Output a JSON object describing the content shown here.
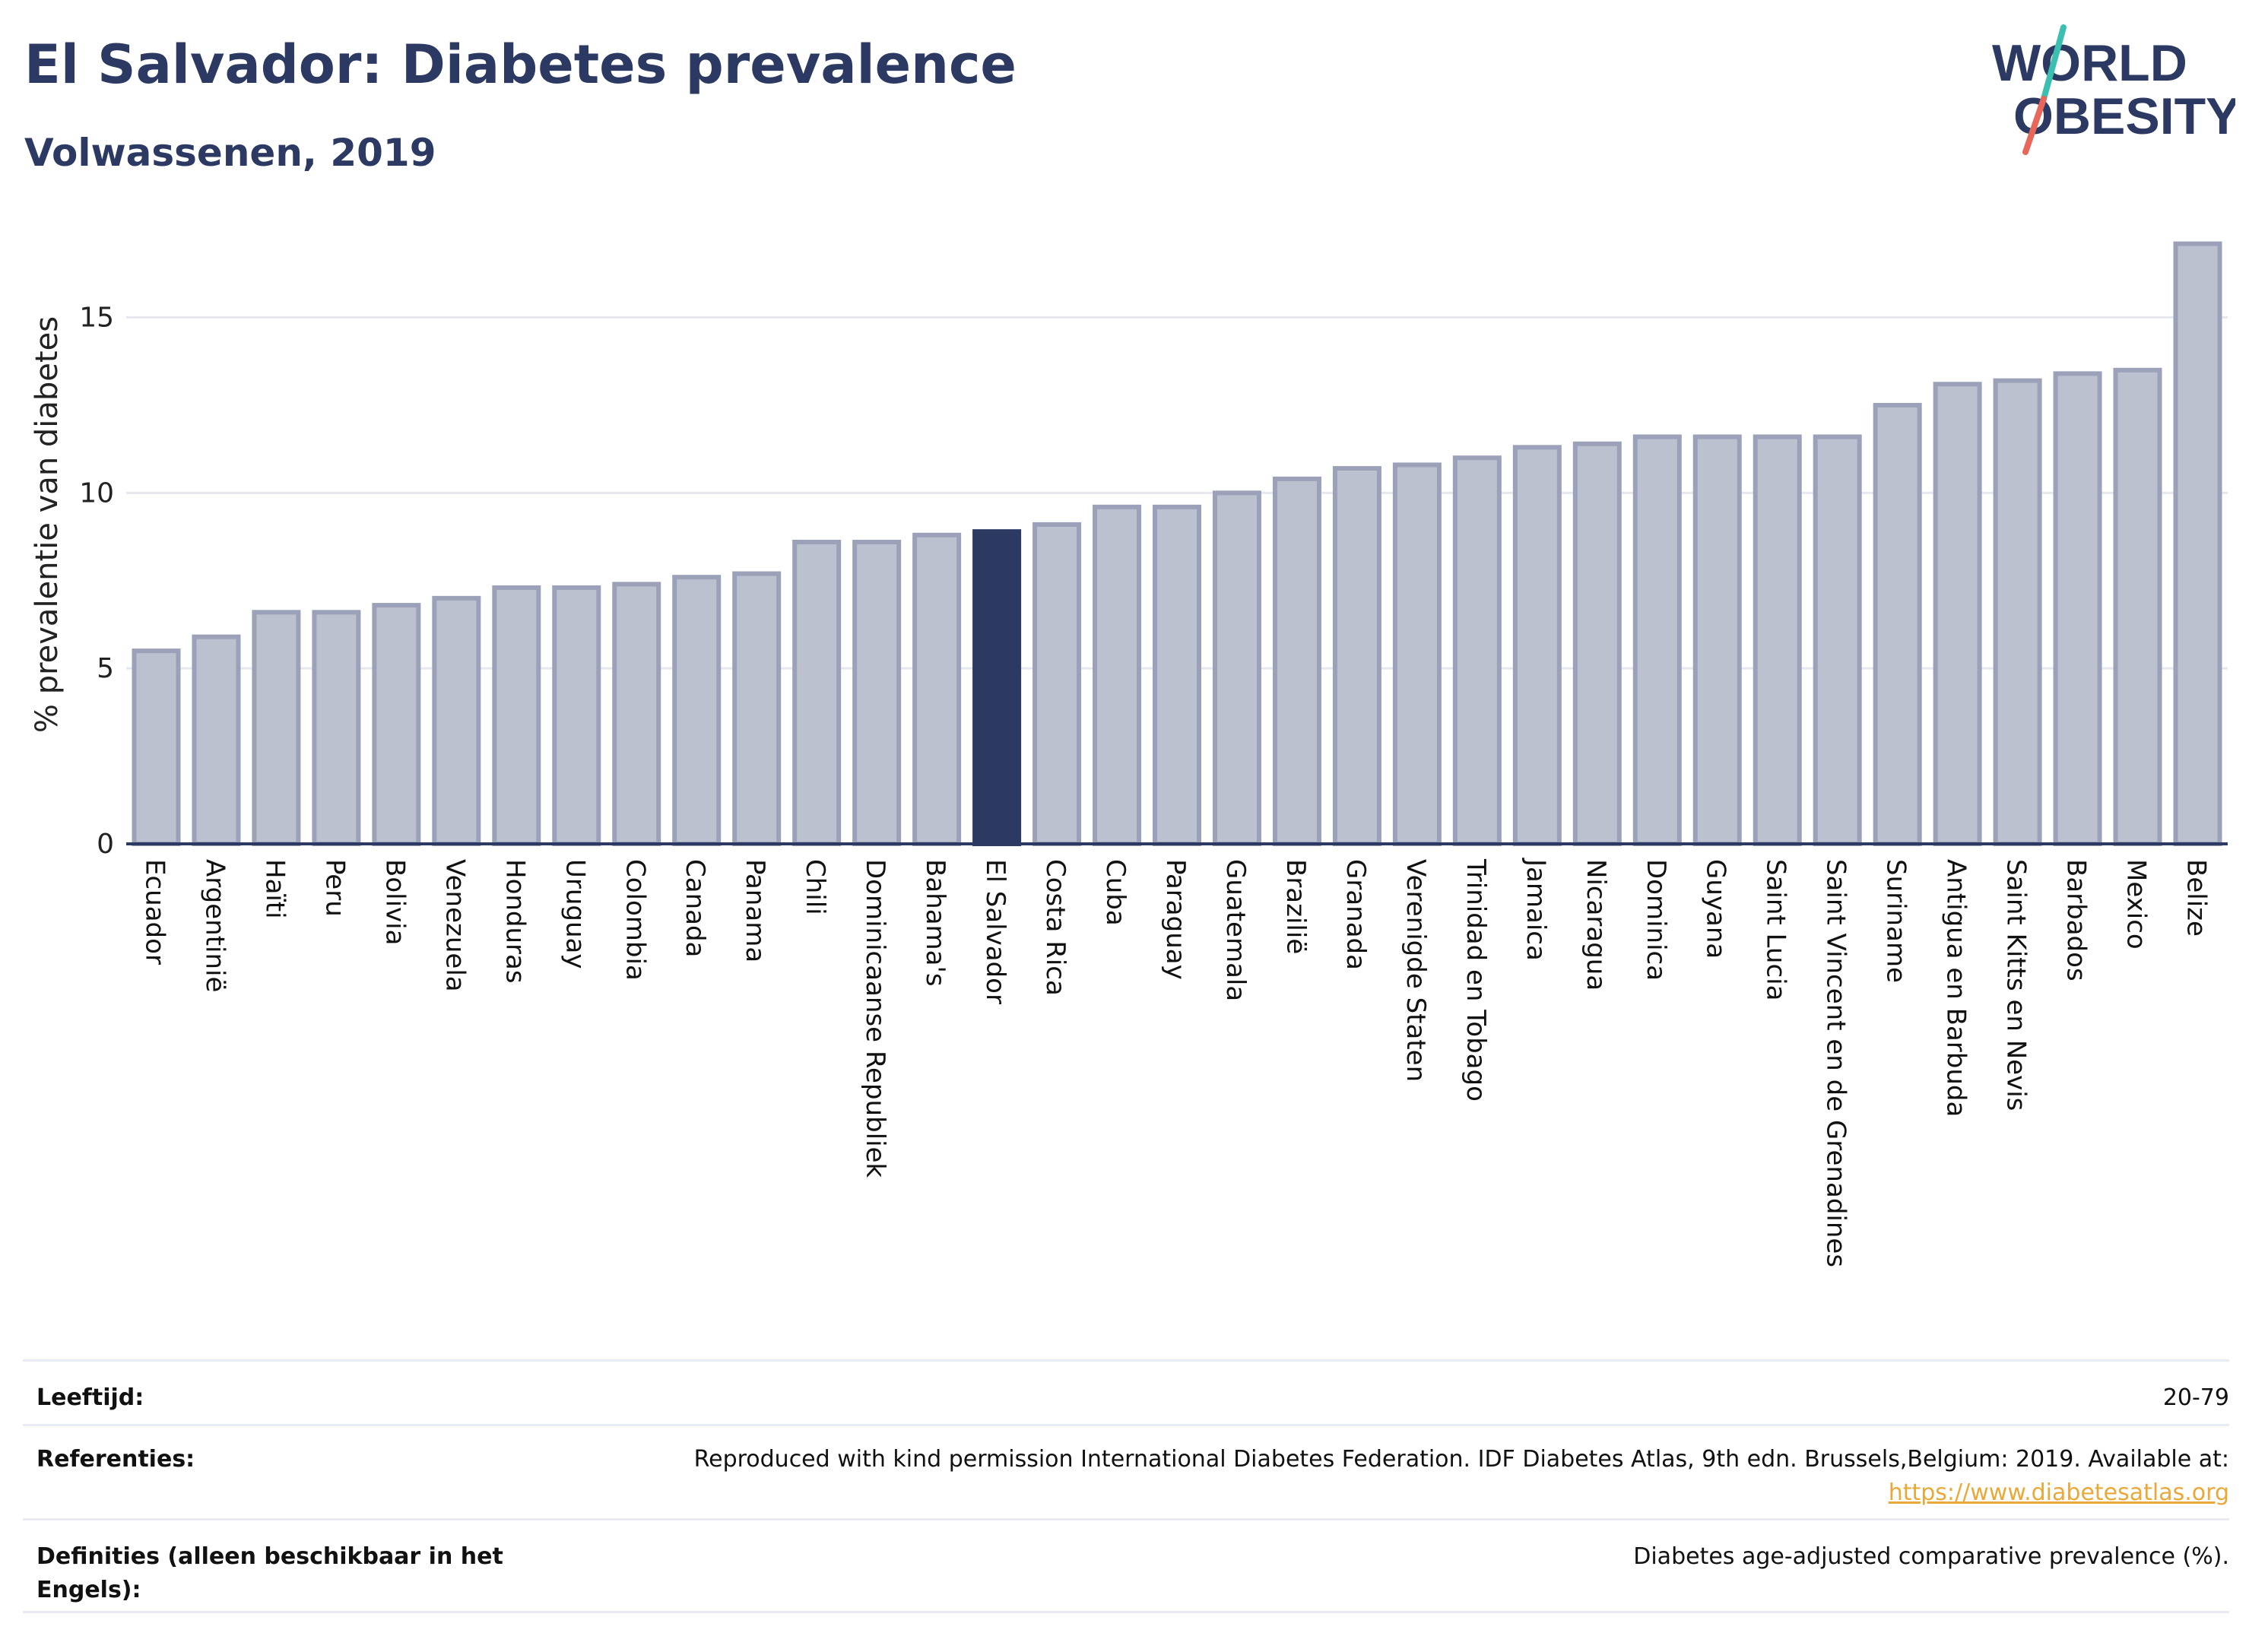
{
  "header": {
    "title": "El Salvador: Diabetes prevalence",
    "subtitle": "Volwassenen, 2019"
  },
  "logo": {
    "line1": "WORLD",
    "line2": "OBESITY",
    "accent_teal": "#3bbfb0",
    "accent_red": "#e8665a",
    "text_color": "#2c3a63"
  },
  "colors": {
    "bar_fill": "#bcc1d0",
    "bar_stroke": "#9aa1b9",
    "highlight_fill": "#2c3a63",
    "axis": "#2c3a63",
    "grid": "#e6e8ef"
  },
  "chart_data": {
    "type": "bar",
    "title": "El Salvador: Diabetes prevalence",
    "subtitle": "Volwassenen, 2019",
    "ylabel": "% prevalentie van diabetes",
    "xlabel": "",
    "ylim": [
      0,
      17.2
    ],
    "yticks": [
      0,
      5,
      10,
      15
    ],
    "grid": true,
    "highlight": "El Salvador",
    "categories": [
      "Ecuador",
      "Argentinië",
      "Haïti",
      "Peru",
      "Bolivia",
      "Venezuela",
      "Honduras",
      "Uruguay",
      "Colombia",
      "Canada",
      "Panama",
      "Chili",
      "Dominicaanse Republiek",
      "Bahama's",
      "El Salvador",
      "Costa Rica",
      "Cuba",
      "Paraguay",
      "Guatemala",
      "Brazilië",
      "Granada",
      "Verenigde Staten",
      "Trinidad en Tobago",
      "Jamaica",
      "Nicaragua",
      "Dominica",
      "Guyana",
      "Saint Lucia",
      "Saint Vincent en de Grenadines",
      "Suriname",
      "Antigua en Barbuda",
      "Saint Kitts en Nevis",
      "Barbados",
      "Mexico",
      "Belize"
    ],
    "values": [
      5.5,
      5.9,
      6.6,
      6.6,
      6.8,
      7.0,
      7.3,
      7.3,
      7.4,
      7.6,
      7.7,
      8.6,
      8.6,
      8.8,
      8.9,
      9.1,
      9.6,
      9.6,
      10.0,
      10.4,
      10.7,
      10.8,
      11.0,
      11.3,
      11.4,
      11.6,
      11.6,
      11.6,
      11.6,
      12.5,
      13.1,
      13.2,
      13.4,
      13.5,
      17.1
    ]
  },
  "footer": {
    "rows": [
      {
        "label": "Leeftijd:",
        "value": "20-79",
        "link": ""
      },
      {
        "label": "Referenties:",
        "value": "Reproduced with kind permission International Diabetes Federation. IDF Diabetes Atlas, 9th edn. Brussels,Belgium: 2019. Available at:",
        "link": "https://www.diabetesatlas.org"
      },
      {
        "label": "Definities (alleen beschikbaar in het Engels):",
        "value": "Diabetes age-adjusted comparative prevalence (%).",
        "link": ""
      }
    ]
  }
}
